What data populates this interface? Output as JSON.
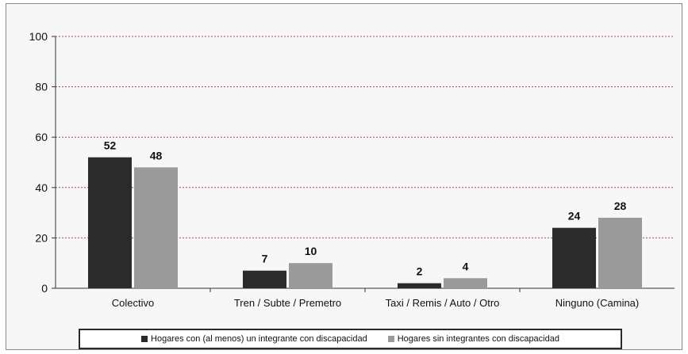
{
  "chart_data": {
    "type": "bar",
    "categories": [
      "Colectivo",
      "Tren / Subte / Premetro",
      "Taxi / Remis / Auto / Otro",
      "Ninguno (Camina)"
    ],
    "series": [
      {
        "name": "Hogares con (al menos) un integrante con discapacidad",
        "values": [
          52,
          7,
          2,
          24
        ],
        "color": "#2b2b2b"
      },
      {
        "name": "Hogares sin integrantes con discapacidad",
        "values": [
          48,
          10,
          4,
          28
        ],
        "color": "#9a9a9a"
      }
    ],
    "ylim": [
      0,
      100
    ],
    "yticks": [
      0,
      20,
      40,
      60,
      80,
      100
    ],
    "grid": true,
    "legend": "bottom",
    "title": "",
    "xlabel": "",
    "ylabel": ""
  }
}
